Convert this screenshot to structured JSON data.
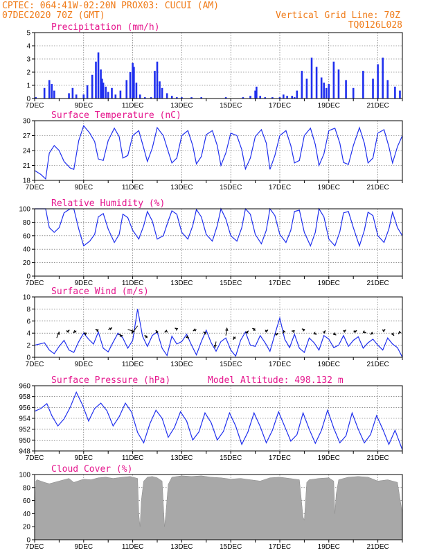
{
  "header": {
    "line1": "CPTEC:   064:41W-02:20N   PROX03: CUCUI (AM)",
    "line2": "07DEC2020 70Z (GMT)",
    "grid_note": "Vertical Grid Line: 70Z",
    "code": "TQ0126L028"
  },
  "colors": {
    "header": "#f07b18",
    "title": "#e5168d",
    "series": "#1f2fee",
    "cloud": "#a8a8a8",
    "grid": "#555555"
  },
  "x_axis": {
    "start_day": 7,
    "end_day": 22,
    "ticks": [
      {
        "day": 7,
        "label": "7DEC"
      },
      {
        "day": 9,
        "label": "9DEC"
      },
      {
        "day": 11,
        "label": "11DEC"
      },
      {
        "day": 13,
        "label": "13DEC"
      },
      {
        "day": 15,
        "label": "15DEC"
      },
      {
        "day": 17,
        "label": "17DEC"
      },
      {
        "day": 19,
        "label": "19DEC"
      },
      {
        "day": 21,
        "label": "21DEC"
      }
    ]
  },
  "chart_data": [
    {
      "type": "bar",
      "title": "Precipitation (mm/h)",
      "ylim": [
        0,
        5
      ],
      "yticks": [
        "0",
        "1",
        "2",
        "3",
        "4",
        "5"
      ],
      "x": [
        7.05,
        7.4,
        7.6,
        7.7,
        7.8,
        8.4,
        8.55,
        8.7,
        9.0,
        9.15,
        9.35,
        9.5,
        9.6,
        9.7,
        9.75,
        9.8,
        9.9,
        10.0,
        10.15,
        10.3,
        10.5,
        10.75,
        10.9,
        11.0,
        11.05,
        11.15,
        11.3,
        11.5,
        11.75,
        11.9,
        12.0,
        12.1,
        12.2,
        12.4,
        12.6,
        12.8,
        13.0,
        13.2,
        13.4,
        13.6,
        13.8,
        14.0,
        14.2,
        14.5,
        14.8,
        15.0,
        15.2,
        15.5,
        15.8,
        16.0,
        16.05,
        16.2,
        16.4,
        16.7,
        16.9,
        17.0,
        17.15,
        17.3,
        17.5,
        17.6,
        17.7,
        17.9,
        18.1,
        18.3,
        18.5,
        18.7,
        18.8,
        18.9,
        19.0,
        19.2,
        19.4,
        19.7,
        20.0,
        20.4,
        20.8,
        21.0,
        21.2,
        21.4,
        21.7,
        21.9
      ],
      "values": [
        0.1,
        0.8,
        1.4,
        1.1,
        0.6,
        0.4,
        0.8,
        0.3,
        0.3,
        1.0,
        1.8,
        2.8,
        3.5,
        2.2,
        1.5,
        1.2,
        0.9,
        0.5,
        0.8,
        0.3,
        0.6,
        1.4,
        2.0,
        2.7,
        2.4,
        1.2,
        0.3,
        0.1,
        0.1,
        2.1,
        2.8,
        1.3,
        0.8,
        0.4,
        0.2,
        0.1,
        0.1,
        0.0,
        0.1,
        0.0,
        0.1,
        0.0,
        0.0,
        0.0,
        0.1,
        0.0,
        0.0,
        0.1,
        0.2,
        0.6,
        0.9,
        0.2,
        0.1,
        0.1,
        0.0,
        0.1,
        0.3,
        0.2,
        0.2,
        0.1,
        0.6,
        2.1,
        1.5,
        3.1,
        2.4,
        1.6,
        1.2,
        0.8,
        1.1,
        2.8,
        2.2,
        1.4,
        0.8,
        2.1,
        1.5,
        2.6,
        3.1,
        1.4,
        0.9,
        0.6
      ]
    },
    {
      "type": "line",
      "title": "Surface Temperature (nC)",
      "ylim": [
        18,
        30
      ],
      "yticks": [
        "18",
        "21",
        "24",
        "27",
        "30"
      ],
      "x": [
        7.0,
        7.25,
        7.45,
        7.6,
        7.8,
        8.0,
        8.2,
        8.45,
        8.6,
        8.8,
        9.0,
        9.25,
        9.45,
        9.6,
        9.8,
        10.0,
        10.25,
        10.45,
        10.6,
        10.8,
        11.0,
        11.25,
        11.45,
        11.6,
        11.8,
        12.0,
        12.25,
        12.45,
        12.6,
        12.8,
        13.0,
        13.25,
        13.45,
        13.6,
        13.8,
        14.0,
        14.25,
        14.45,
        14.6,
        14.8,
        15.0,
        15.25,
        15.45,
        15.6,
        15.8,
        16.0,
        16.25,
        16.45,
        16.6,
        16.8,
        17.0,
        17.25,
        17.45,
        17.6,
        17.8,
        18.0,
        18.25,
        18.45,
        18.6,
        18.8,
        19.0,
        19.25,
        19.45,
        19.6,
        19.8,
        20.0,
        20.25,
        20.45,
        20.6,
        20.8,
        21.0,
        21.25,
        21.45,
        21.6,
        21.8,
        22.0
      ],
      "values": [
        20.0,
        19.2,
        18.3,
        23.5,
        25.0,
        24.0,
        21.8,
        20.5,
        20.2,
        26.0,
        29.0,
        27.5,
        25.8,
        22.3,
        22.0,
        26.0,
        28.5,
        26.8,
        22.5,
        23.0,
        27.0,
        28.0,
        24.5,
        21.8,
        24.5,
        28.6,
        27.0,
        23.8,
        21.5,
        22.5,
        27.0,
        28.0,
        25.0,
        21.3,
        22.8,
        27.2,
        28.0,
        25.0,
        21.0,
        23.5,
        27.5,
        27.0,
        24.2,
        20.3,
        22.5,
        26.8,
        28.2,
        25.5,
        20.2,
        23.0,
        27.0,
        28.0,
        25.0,
        21.5,
        22.0,
        27.0,
        28.5,
        25.2,
        21.0,
        23.3,
        28.0,
        28.5,
        25.5,
        21.6,
        21.2,
        25.0,
        28.6,
        25.5,
        21.5,
        22.5,
        27.5,
        28.2,
        24.8,
        21.5,
        24.8,
        27.0
      ]
    },
    {
      "type": "line",
      "title": "Relative Humidity (%)",
      "ylim": [
        0,
        100
      ],
      "yticks": [
        "0",
        "20",
        "40",
        "60",
        "80",
        "100"
      ],
      "x": [
        7.0,
        7.25,
        7.45,
        7.6,
        7.8,
        8.0,
        8.2,
        8.45,
        8.6,
        8.8,
        9.0,
        9.25,
        9.45,
        9.6,
        9.8,
        10.0,
        10.25,
        10.45,
        10.6,
        10.8,
        11.0,
        11.25,
        11.45,
        11.6,
        11.8,
        12.0,
        12.25,
        12.45,
        12.6,
        12.8,
        13.0,
        13.25,
        13.45,
        13.6,
        13.8,
        14.0,
        14.25,
        14.45,
        14.6,
        14.8,
        15.0,
        15.25,
        15.45,
        15.6,
        15.8,
        16.0,
        16.25,
        16.45,
        16.6,
        16.8,
        17.0,
        17.25,
        17.45,
        17.6,
        17.8,
        18.0,
        18.25,
        18.45,
        18.6,
        18.8,
        19.0,
        19.25,
        19.45,
        19.6,
        19.8,
        20.0,
        20.25,
        20.45,
        20.6,
        20.8,
        21.0,
        21.25,
        21.45,
        21.6,
        21.8,
        22.0
      ],
      "values": [
        100,
        100,
        100,
        72,
        65,
        72,
        94,
        100,
        100,
        70,
        45,
        52,
        62,
        88,
        93,
        70,
        50,
        62,
        92,
        87,
        68,
        55,
        75,
        96,
        82,
        55,
        60,
        82,
        97,
        92,
        65,
        55,
        75,
        99,
        88,
        62,
        52,
        75,
        100,
        85,
        60,
        52,
        72,
        100,
        92,
        62,
        48,
        68,
        100,
        90,
        62,
        50,
        68,
        96,
        98,
        65,
        45,
        65,
        100,
        88,
        55,
        45,
        66,
        94,
        96,
        72,
        45,
        68,
        95,
        90,
        60,
        50,
        70,
        95,
        72,
        60
      ]
    },
    {
      "type": "line",
      "title": "Surface Wind (m/s)",
      "ylim": [
        0,
        10
      ],
      "yticks": [
        "0",
        "2",
        "4",
        "6",
        "8",
        "10"
      ],
      "x": [
        7.0,
        7.2,
        7.4,
        7.6,
        7.8,
        8.0,
        8.2,
        8.4,
        8.6,
        8.8,
        9.0,
        9.2,
        9.4,
        9.6,
        9.8,
        10.0,
        10.2,
        10.4,
        10.6,
        10.8,
        11.0,
        11.2,
        11.4,
        11.6,
        11.8,
        12.0,
        12.2,
        12.4,
        12.6,
        12.8,
        13.0,
        13.2,
        13.4,
        13.6,
        13.8,
        14.0,
        14.2,
        14.4,
        14.6,
        14.8,
        15.0,
        15.2,
        15.4,
        15.6,
        15.8,
        16.0,
        16.2,
        16.4,
        16.6,
        16.8,
        17.0,
        17.2,
        17.4,
        17.6,
        17.8,
        18.0,
        18.2,
        18.4,
        18.6,
        18.8,
        19.0,
        19.2,
        19.4,
        19.6,
        19.8,
        20.0,
        20.2,
        20.4,
        20.6,
        20.8,
        21.0,
        21.2,
        21.4,
        21.6,
        21.8,
        22.0
      ],
      "values": [
        2.0,
        2.2,
        2.4,
        1.2,
        0.6,
        1.8,
        2.8,
        1.2,
        0.8,
        2.6,
        4.0,
        3.0,
        2.2,
        4.2,
        1.5,
        0.9,
        2.5,
        4.0,
        3.2,
        1.5,
        2.8,
        8.0,
        3.5,
        1.8,
        3.6,
        4.2,
        1.5,
        0.3,
        3.5,
        2.2,
        2.6,
        3.8,
        2.0,
        0.4,
        2.6,
        4.5,
        2.4,
        1.0,
        2.6,
        3.2,
        1.2,
        0.2,
        2.8,
        4.2,
        2.0,
        1.8,
        3.6,
        2.4,
        1.0,
        3.8,
        6.5,
        3.0,
        1.6,
        3.8,
        1.5,
        0.8,
        3.2,
        2.4,
        1.2,
        3.6,
        3.0,
        1.6,
        2.0,
        3.6,
        1.8,
        2.8,
        3.4,
        1.5,
        2.4,
        3.0,
        2.0,
        1.2,
        3.2,
        2.2,
        1.6,
        0.0
      ]
    },
    {
      "type": "line",
      "title": "Surface Pressure (hPa)",
      "annotation": "Model Altitude: 498.132 m",
      "ylim": [
        948,
        960
      ],
      "yticks": [
        "948",
        "950",
        "952",
        "954",
        "956",
        "958",
        "960"
      ],
      "x": [
        7.0,
        7.25,
        7.5,
        7.7,
        7.95,
        8.2,
        8.45,
        8.7,
        8.95,
        9.2,
        9.45,
        9.7,
        9.95,
        10.2,
        10.45,
        10.7,
        10.95,
        11.2,
        11.45,
        11.7,
        11.95,
        12.2,
        12.45,
        12.7,
        12.95,
        13.2,
        13.45,
        13.7,
        13.95,
        14.2,
        14.45,
        14.7,
        14.95,
        15.2,
        15.45,
        15.7,
        15.95,
        16.2,
        16.45,
        16.7,
        16.95,
        17.2,
        17.45,
        17.7,
        17.95,
        18.2,
        18.45,
        18.7,
        18.95,
        19.2,
        19.45,
        19.7,
        19.95,
        20.2,
        20.45,
        20.7,
        20.95,
        21.2,
        21.45,
        21.7,
        22.0
      ],
      "values": [
        955.3,
        955.8,
        956.7,
        954.5,
        952.6,
        953.9,
        956.0,
        958.8,
        956.5,
        953.5,
        955.8,
        956.8,
        955.4,
        952.6,
        954.3,
        956.8,
        955.2,
        951.4,
        949.5,
        953.0,
        955.5,
        954.0,
        950.5,
        952.3,
        955.2,
        953.5,
        950.0,
        951.5,
        955.0,
        953.2,
        950.0,
        951.6,
        955.0,
        952.6,
        949.2,
        951.5,
        955.0,
        952.5,
        949.5,
        951.8,
        955.2,
        952.5,
        949.8,
        951.0,
        955.0,
        952.0,
        949.4,
        951.8,
        955.5,
        952.2,
        949.5,
        950.8,
        955.0,
        952.0,
        949.5,
        951.0,
        954.5,
        952.0,
        949.2,
        951.8,
        948.2
      ]
    },
    {
      "type": "area",
      "title": "Cloud Cover (%)",
      "ylim": [
        0,
        100
      ],
      "yticks": [
        "0",
        "20",
        "40",
        "60",
        "80",
        "100"
      ],
      "x": [
        7.0,
        7.05,
        7.1,
        7.4,
        7.6,
        8.0,
        8.4,
        8.6,
        9.0,
        9.3,
        9.6,
        9.9,
        10.2,
        10.6,
        10.9,
        11.2,
        11.25,
        11.3,
        11.35,
        11.45,
        11.6,
        11.8,
        12.0,
        12.2,
        12.3,
        12.35,
        12.45,
        12.6,
        13.0,
        13.4,
        13.8,
        14.2,
        14.6,
        15.0,
        15.4,
        15.8,
        16.2,
        16.6,
        17.0,
        17.4,
        17.8,
        17.95,
        18.0,
        18.05,
        18.1,
        18.2,
        18.6,
        19.0,
        19.2,
        19.25,
        19.3,
        19.4,
        19.8,
        20.2,
        20.6,
        21.0,
        21.4,
        21.8,
        22.0
      ],
      "values": [
        30,
        90,
        92,
        88,
        86,
        90,
        94,
        88,
        93,
        92,
        95,
        96,
        94,
        96,
        97,
        94,
        40,
        20,
        60,
        90,
        96,
        97,
        95,
        90,
        20,
        40,
        85,
        96,
        98,
        97,
        98,
        96,
        95,
        93,
        94,
        92,
        90,
        95,
        96,
        94,
        92,
        35,
        30,
        60,
        88,
        92,
        94,
        95,
        90,
        40,
        70,
        92,
        96,
        97,
        96,
        90,
        92,
        88,
        40
      ]
    }
  ],
  "wind_arrows": {
    "x": [
      7.9,
      8.3,
      8.7,
      9.1,
      9.6,
      10.0,
      10.4,
      10.8,
      11.2,
      11.6,
      12.0,
      12.4,
      12.8,
      13.2,
      13.6,
      14.0,
      14.4,
      14.8,
      15.2,
      15.6,
      16.0,
      16.4,
      16.8,
      17.2,
      17.6,
      18.0,
      18.4,
      18.8,
      19.2,
      19.6,
      20.0,
      20.4,
      20.8,
      21.2,
      21.6,
      21.9
    ],
    "y": [
      3.2,
      4.2,
      4.4,
      3.8,
      4.3,
      4.6,
      3.8,
      4.6,
      5.2,
      3.2,
      4.0,
      4.3,
      4.6,
      3.5,
      4.6,
      3.8,
      2.6,
      3.6,
      3.4,
      4.0,
      4.4,
      4.3,
      3.8,
      4.3,
      4.2,
      4.4,
      4.1,
      4.2,
      4.0,
      4.3,
      4.2,
      4.3,
      4.0,
      4.4,
      4.0,
      4.1
    ],
    "u": [
      0.5,
      0.6,
      -0.6,
      -0.5,
      -0.6,
      0.8,
      1.0,
      1.4,
      -1.2,
      -0.6,
      -0.3,
      -0.5,
      -0.4,
      0.5,
      -0.7,
      -0.6,
      -0.2,
      0.2,
      -0.5,
      0.6,
      -0.6,
      0.6,
      0.7,
      -0.4,
      -0.6,
      -0.5,
      0.5,
      0.3,
      0.5,
      0.5,
      0.7,
      0.6,
      -0.5,
      0.5,
      0.3,
      -0.3
    ],
    "v": [
      1.3,
      0.4,
      -0.5,
      0.3,
      0.4,
      0.4,
      -0.3,
      -0.4,
      -1.6,
      0.5,
      0.6,
      -0.2,
      0.3,
      -0.4,
      -0.3,
      0.5,
      -1.3,
      1.6,
      -0.6,
      0.5,
      0.5,
      0.3,
      0.2,
      -0.4,
      0.2,
      0.4,
      -0.4,
      0.3,
      -0.4,
      0.3,
      0.3,
      -0.3,
      -0.3,
      0.3,
      -0.5,
      -0.3
    ]
  }
}
